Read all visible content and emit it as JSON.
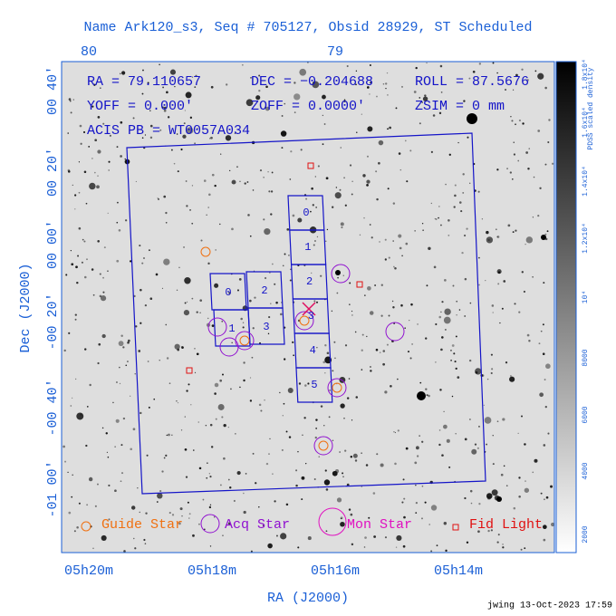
{
  "title": "Name Ark120_s3, Seq # 705127, Obsid 28929, ST Scheduled",
  "info": [
    "RA = 79.110657",
    "DEC = −0.204688",
    "ROLL = 87.5676",
    "YOFF =   0.000'",
    "ZOFF =  0.0000'",
    "ZSIM = 0 mm",
    "ACIS PB = WT0057A034"
  ],
  "x_axis": {
    "label": "RA (J2000)",
    "ticks": [
      "05h20m",
      "05h18m",
      "05h16m",
      "05h14m"
    ]
  },
  "top_ticks": [
    "80",
    "79"
  ],
  "y_axis": {
    "label": "Dec (J2000)",
    "ticks": [
      "00 40'",
      "00 20'",
      "00 00'",
      "-00 20'",
      "-00 40'",
      "-01 00'"
    ]
  },
  "colorbar": {
    "label": "PDSS scaled density",
    "ticks": [
      "2000",
      "4000",
      "6000",
      "8000",
      "10⁴",
      "1.2x10⁴",
      "1.4x10⁴",
      "1.6x10⁴",
      "1.8x10⁴"
    ]
  },
  "legend": [
    "Guide Star",
    "Acq Star",
    "Mon Star",
    "Fid Light"
  ],
  "chips": {
    "acis_i": [
      "0",
      "2",
      "1",
      "3"
    ],
    "acis_s": [
      "0",
      "1",
      "2",
      "3",
      "4",
      "5"
    ]
  },
  "footer": "jwing 13-Oct-2023 17:59"
}
